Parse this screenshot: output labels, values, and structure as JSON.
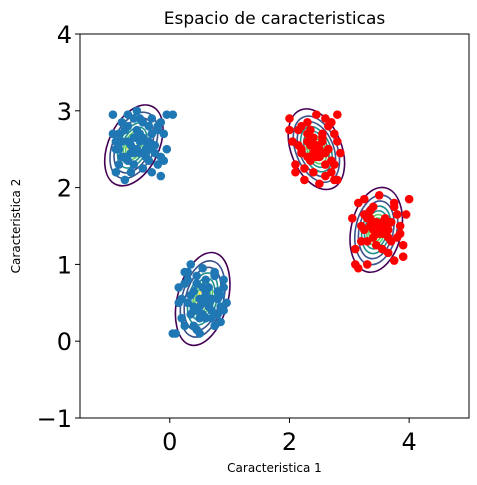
{
  "chart_data": {
    "type": "scatter",
    "title": "Espacio de caracteristicas",
    "xlabel": "Caracteristica 1",
    "ylabel": "Caracteristica 2",
    "xlim": [
      -1.5,
      5.0
    ],
    "ylim": [
      -1.0,
      4.0
    ],
    "xticks": [
      0,
      2,
      4
    ],
    "yticks": [
      -1,
      0,
      1,
      2,
      3,
      4
    ],
    "xtick_labels": [
      "0",
      "2",
      "4"
    ],
    "ytick_labels": [
      "−1",
      "0",
      "1",
      "2",
      "3",
      "4"
    ],
    "grid": false,
    "legend": "none",
    "colors": {
      "class_a": "#1f77b4",
      "class_b": "#ff0000",
      "contour_levels": [
        "#440154",
        "#3b528b",
        "#21918c",
        "#5ec962",
        "#fde725"
      ]
    },
    "clusters": [
      {
        "center": [
          -0.6,
          2.55
        ],
        "class": "class_a",
        "sx": 0.42,
        "sy": 0.56,
        "angle": 25
      },
      {
        "center": [
          0.55,
          0.55
        ],
        "class": "class_a",
        "sx": 0.42,
        "sy": 0.62,
        "angle": 15
      },
      {
        "center": [
          2.45,
          2.5
        ],
        "class": "class_b",
        "sx": 0.42,
        "sy": 0.55,
        "angle": -22
      },
      {
        "center": [
          3.45,
          1.45
        ],
        "class": "class_b",
        "sx": 0.42,
        "sy": 0.56,
        "angle": 12
      }
    ],
    "series": [
      {
        "class": "class_a",
        "x": [
          -0.95,
          -0.9,
          -0.85,
          -0.8,
          -0.75,
          -0.7,
          -0.65,
          -0.6,
          -0.55,
          -0.5,
          -0.45,
          -0.4,
          -0.35,
          -0.3,
          -0.25,
          -0.2,
          -0.15,
          -0.1,
          -0.05,
          -0.9,
          -0.8,
          -0.7,
          -0.6,
          -0.5,
          -0.4,
          -0.3,
          -0.2,
          -0.1,
          -0.95,
          -0.85,
          -0.75,
          -0.65,
          -0.55,
          -0.45,
          -0.35,
          -0.25,
          -0.15,
          -0.05,
          -0.7,
          -0.6,
          -0.5,
          -0.4,
          0.05,
          -0.3,
          -0.6,
          -0.9,
          -0.3,
          -0.7,
          -0.55,
          -0.45,
          -0.8,
          -0.2,
          -0.65,
          -0.35,
          -0.75,
          -0.4,
          -0.5,
          -0.85,
          -0.15,
          -0.6,
          0.15,
          0.2,
          0.25,
          0.3,
          0.35,
          0.4,
          0.45,
          0.5,
          0.55,
          0.6,
          0.65,
          0.7,
          0.75,
          0.8,
          0.85,
          0.9,
          0.95,
          0.2,
          0.3,
          0.4,
          0.5,
          0.6,
          0.7,
          0.8,
          0.9,
          0.25,
          0.35,
          0.45,
          0.55,
          0.65,
          0.75,
          0.85,
          0.4,
          0.5,
          0.6,
          0.7,
          0.05,
          0.1,
          0.15,
          0.3,
          0.45,
          0.6,
          0.75,
          0.9,
          0.35,
          0.55,
          0.65,
          0.8,
          0.5,
          0.4,
          0.7,
          0.25,
          0.6,
          0.85,
          0.45,
          0.55
        ],
        "y": [
          2.7,
          2.5,
          2.3,
          2.85,
          2.4,
          2.95,
          2.2,
          2.65,
          3.0,
          2.45,
          2.85,
          2.6,
          2.35,
          2.9,
          2.55,
          2.75,
          2.4,
          2.7,
          2.5,
          2.2,
          2.6,
          2.8,
          2.3,
          2.9,
          2.5,
          2.2,
          2.8,
          2.35,
          2.95,
          2.7,
          2.1,
          2.45,
          2.75,
          2.25,
          2.6,
          2.45,
          2.85,
          2.95,
          2.35,
          2.9,
          2.6,
          2.4,
          2.95,
          2.7,
          2.5,
          2.6,
          2.5,
          2.6,
          2.5,
          2.65,
          2.4,
          2.3,
          2.55,
          2.8,
          2.75,
          2.45,
          2.7,
          2.5,
          2.15,
          2.45,
          0.7,
          0.3,
          0.9,
          0.5,
          1.0,
          0.2,
          0.75,
          0.45,
          0.95,
          0.3,
          0.7,
          0.55,
          0.85,
          0.35,
          0.6,
          0.8,
          0.5,
          0.55,
          0.8,
          0.4,
          0.1,
          0.65,
          0.3,
          0.55,
          0.7,
          0.2,
          0.6,
          0.85,
          0.35,
          0.45,
          0.9,
          0.25,
          0.65,
          0.55,
          0.6,
          0.4,
          0.1,
          0.1,
          0.5,
          0.9,
          0.15,
          0.8,
          0.2,
          0.4,
          0.35,
          0.7,
          0.5,
          0.65,
          0.3,
          0.45,
          0.55,
          0.75,
          0.6,
          0.45,
          0.4,
          0.5
        ]
      },
      {
        "class": "class_b",
        "x": [
          2.0,
          2.05,
          2.1,
          2.15,
          2.2,
          2.25,
          2.3,
          2.35,
          2.4,
          2.45,
          2.5,
          2.55,
          2.6,
          2.65,
          2.7,
          2.75,
          2.8,
          2.85,
          2.1,
          2.2,
          2.3,
          2.4,
          2.5,
          2.6,
          2.7,
          2.8,
          2.15,
          2.25,
          2.35,
          2.45,
          2.55,
          2.65,
          2.75,
          2.3,
          2.4,
          2.5,
          2.6,
          2.45,
          2.55,
          2.35,
          2.65,
          2.0,
          2.75,
          2.2,
          2.5,
          2.4,
          2.6,
          2.3,
          2.7,
          2.8,
          3.05,
          3.1,
          3.15,
          3.2,
          3.25,
          3.3,
          3.35,
          3.4,
          3.45,
          3.5,
          3.55,
          3.6,
          3.65,
          3.7,
          3.75,
          3.8,
          3.85,
          3.9,
          3.95,
          4.0,
          3.15,
          3.25,
          3.35,
          3.45,
          3.55,
          3.65,
          3.75,
          3.85,
          3.2,
          3.3,
          3.4,
          3.5,
          3.6,
          3.7,
          3.8,
          3.3,
          3.4,
          3.5,
          3.6,
          3.45,
          3.55,
          3.35,
          3.65,
          3.1,
          3.75,
          3.9,
          3.25,
          3.5,
          3.4,
          3.6
        ],
        "y": [
          2.9,
          2.6,
          2.3,
          2.75,
          2.45,
          2.1,
          2.85,
          2.55,
          2.2,
          2.95,
          2.4,
          2.7,
          2.15,
          2.5,
          2.85,
          2.3,
          2.6,
          2.45,
          2.2,
          2.8,
          2.4,
          2.65,
          2.05,
          2.9,
          2.35,
          2.95,
          2.55,
          2.25,
          2.75,
          2.4,
          2.6,
          2.5,
          2.1,
          2.6,
          2.45,
          2.5,
          2.3,
          2.55,
          2.65,
          2.35,
          2.8,
          2.75,
          2.7,
          2.5,
          2.4,
          2.55,
          2.45,
          2.7,
          2.2,
          2.1,
          1.6,
          1.2,
          1.8,
          1.3,
          1.65,
          1.0,
          1.5,
          1.75,
          1.25,
          1.9,
          1.4,
          1.6,
          1.15,
          1.55,
          1.8,
          1.35,
          1.5,
          1.25,
          1.65,
          1.85,
          0.95,
          1.45,
          1.7,
          1.55,
          1.2,
          1.35,
          1.05,
          1.4,
          1.5,
          1.6,
          1.45,
          1.4,
          1.55,
          1.3,
          1.65,
          1.3,
          1.5,
          1.45,
          1.5,
          1.4,
          1.55,
          1.6,
          1.45,
          1.0,
          1.75,
          1.1,
          1.85,
          1.5,
          1.35,
          1.4
        ]
      }
    ]
  }
}
